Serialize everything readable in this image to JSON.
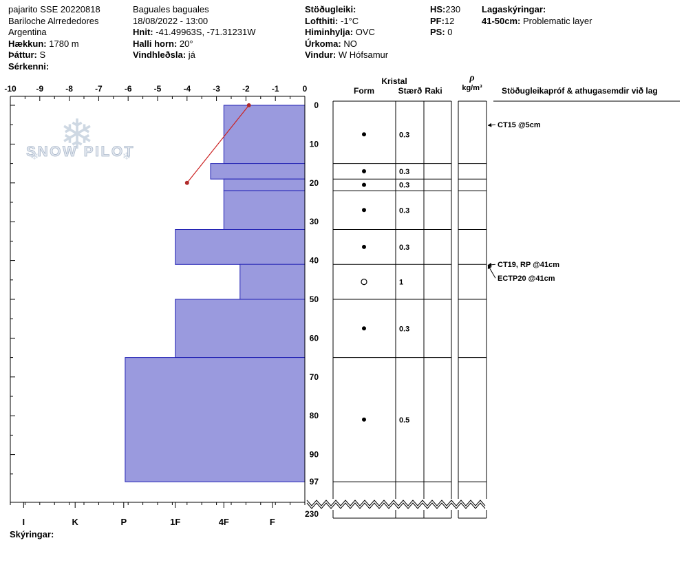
{
  "header": {
    "location": {
      "title": "pajarito SSE 20220818",
      "region": "Bariloche Alrrededores",
      "country": "Argentina",
      "elevation_label": "Hækkun:",
      "elevation_value": "1780 m",
      "aspect_label": "Þáttur:",
      "aspect_value": "S",
      "special_label": "Sérkenni:"
    },
    "site": {
      "name": "Baguales baguales",
      "datetime": "18/08/2022 - 13:00",
      "coords_label": "Hnit:",
      "coords_value": "-41.49963S, -71.31231W",
      "slope_label": "Halli horn:",
      "slope_value": "20°",
      "windload_label": "Vindhleðsla:",
      "windload_value": "já"
    },
    "weather": {
      "stability_label": "Stöðugleiki:",
      "airtemp_label": "Lofthiti:",
      "airtemp_value": "-1°C",
      "sky_label": "Himinhylja:",
      "sky_value": "OVC",
      "precip_label": "Úrkoma:",
      "precip_value": "NO",
      "wind_label": "Vindur:",
      "wind_value": "W Hófsamur"
    },
    "stats": {
      "hs_label": "HS:",
      "hs_value": "230",
      "pf_label": "PF:",
      "pf_value": "12",
      "ps_label": "PS:",
      "ps_value": "0"
    },
    "layer_notes": {
      "title": "Lagaskýringar:",
      "items": [
        {
          "range": "41-50cm:",
          "text": "Problematic layer"
        }
      ]
    }
  },
  "watermark": {
    "text": "SNOW PILOT"
  },
  "table": {
    "kristal_header": "Kristal",
    "columns": {
      "form": "Form",
      "size": "Stærð",
      "moisture": "Raki",
      "density_symbol": "ρ",
      "density_unit": "kg/m³",
      "tests": "Stöðugleikapróf & athugasemdir við lag"
    }
  },
  "chart_data": {
    "type": "bar",
    "subtype": "snow-profile",
    "temp_axis": {
      "min": -10,
      "max": 0,
      "ticks": [
        -10,
        -9,
        -8,
        -7,
        -6,
        -5,
        -4,
        -3,
        -2,
        -1,
        0
      ]
    },
    "depth_ticks": [
      0,
      10,
      20,
      30,
      40,
      50,
      60,
      70,
      80,
      90,
      97
    ],
    "total_depth_label": "230",
    "hardness_scale": [
      {
        "label": "I",
        "pos": -9.55
      },
      {
        "label": "K",
        "pos": -7.8
      },
      {
        "label": "P",
        "pos": -6.15
      },
      {
        "label": "1F",
        "pos": -4.4
      },
      {
        "label": "4F",
        "pos": -2.75
      },
      {
        "label": "F",
        "pos": -1.1
      }
    ],
    "temperature_profile": [
      {
        "temp_c": -1.9,
        "depth_cm": 0
      },
      {
        "temp_c": -4.0,
        "depth_cm": 20
      }
    ],
    "layers": [
      {
        "top_cm": 0,
        "bottom_cm": 15,
        "hardness": "4F",
        "hardness_pos": -2.75,
        "form": "dot",
        "size_mm": "0.3"
      },
      {
        "top_cm": 15,
        "bottom_cm": 19,
        "hardness": "4F-1F",
        "hardness_pos": -3.2,
        "form": "dot",
        "size_mm": "0.3"
      },
      {
        "top_cm": 19,
        "bottom_cm": 22,
        "hardness": "4F",
        "hardness_pos": -2.75,
        "form": "dot",
        "size_mm": "0.3"
      },
      {
        "top_cm": 22,
        "bottom_cm": 32,
        "hardness": "4F",
        "hardness_pos": -2.75,
        "form": "dot",
        "size_mm": "0.3"
      },
      {
        "top_cm": 32,
        "bottom_cm": 41,
        "hardness": "1F",
        "hardness_pos": -4.4,
        "form": "dot",
        "size_mm": "0.3"
      },
      {
        "top_cm": 41,
        "bottom_cm": 50,
        "hardness": "F-4F",
        "hardness_pos": -2.2,
        "form": "circle",
        "size_mm": "1"
      },
      {
        "top_cm": 50,
        "bottom_cm": 65,
        "hardness": "1F",
        "hardness_pos": -4.4,
        "form": "dot",
        "size_mm": "0.3"
      },
      {
        "top_cm": 65,
        "bottom_cm": 97,
        "hardness": "P",
        "hardness_pos": -6.1,
        "form": "dot",
        "size_mm": "0.5"
      }
    ],
    "annotations": [
      {
        "text": "CT15 @5cm",
        "depth_cm": 5
      },
      {
        "text": "CT19, RP @41cm",
        "depth_cm": 41
      },
      {
        "text": "ECTP20 @41cm",
        "depth_cm": 41
      }
    ],
    "colors": {
      "bar_fill": "#9a9ade",
      "bar_stroke": "#2323b4",
      "temp_line": "#cc2222",
      "temp_dot": "#b02a2a"
    }
  },
  "footer": {
    "legend_label": "Skýringar:"
  }
}
